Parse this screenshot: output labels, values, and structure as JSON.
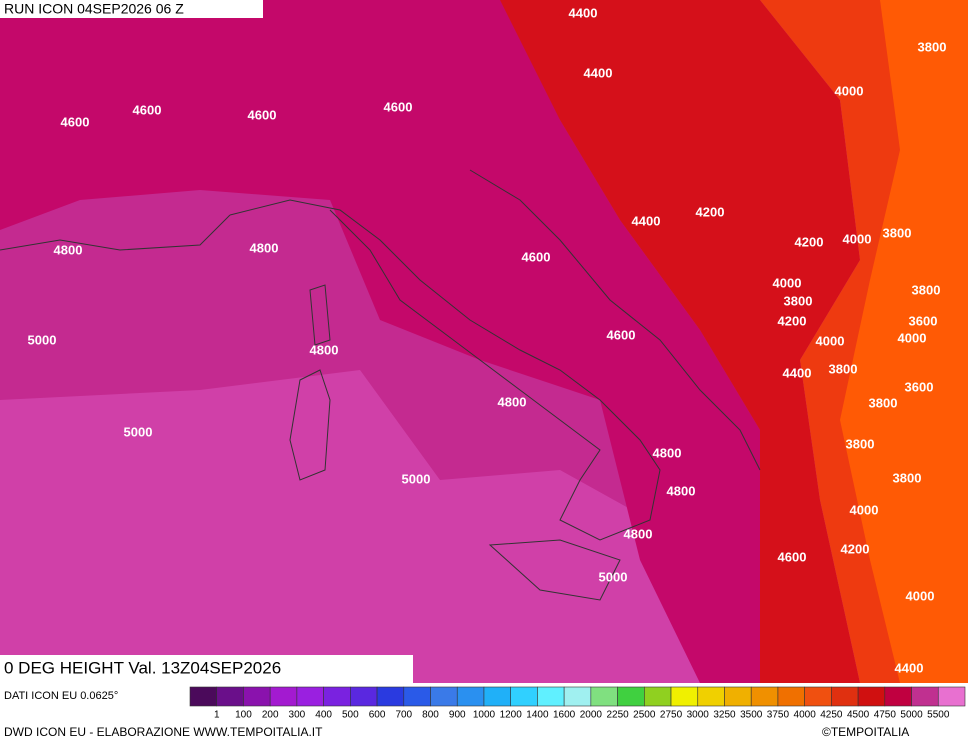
{
  "header": {
    "run": "RUN ICON 04SEP2026 06 Z"
  },
  "map": {
    "title": "0 DEG HEIGHT Val. 13Z04SEP2026",
    "contour_labels": [
      4400,
      4400,
      3800,
      4000,
      4600,
      4600,
      4600,
      4600,
      4400,
      4200,
      4200,
      4000,
      3800,
      4800,
      4800,
      4600,
      4000,
      3800,
      3800,
      4200,
      3600,
      5000,
      4800,
      4600,
      4000,
      4000,
      4400,
      3800,
      3600,
      4800,
      3800,
      5000,
      3800,
      4800,
      5000,
      4800,
      3800,
      4000,
      4800,
      4200,
      4600,
      5000,
      4000,
      4400
    ]
  },
  "legend": {
    "labels": [
      1,
      100,
      200,
      300,
      400,
      500,
      600,
      700,
      800,
      900,
      1000,
      1200,
      1400,
      1600,
      2000,
      2250,
      2500,
      2750,
      3000,
      3250,
      3500,
      3750,
      4000,
      4250,
      4500,
      4750,
      5000,
      5500
    ],
    "colors": [
      "#4b0a5b",
      "#6a0f8a",
      "#8a12ad",
      "#a31ad0",
      "#9a20e0",
      "#7a22e0",
      "#5a28e0",
      "#2a3ae0",
      "#2a5ae8",
      "#3a7ae8",
      "#2a90f0",
      "#20b0f8",
      "#30d0ff",
      "#60f0ff",
      "#a0f0f0",
      "#80e080",
      "#40d040",
      "#90d020",
      "#f0f000",
      "#f0d000",
      "#f0b000",
      "#f09000",
      "#f07000",
      "#f05010",
      "#e03010",
      "#d01010",
      "#c00040",
      "#c03090",
      "#e870d0"
    ]
  },
  "footer": {
    "source": "DATI ICON EU 0.0625°",
    "credit": "DWD ICON EU - ELABORAZIONE WWW.TEMPOITALIA.IT",
    "copyright": "©TEMPOITALIA"
  }
}
